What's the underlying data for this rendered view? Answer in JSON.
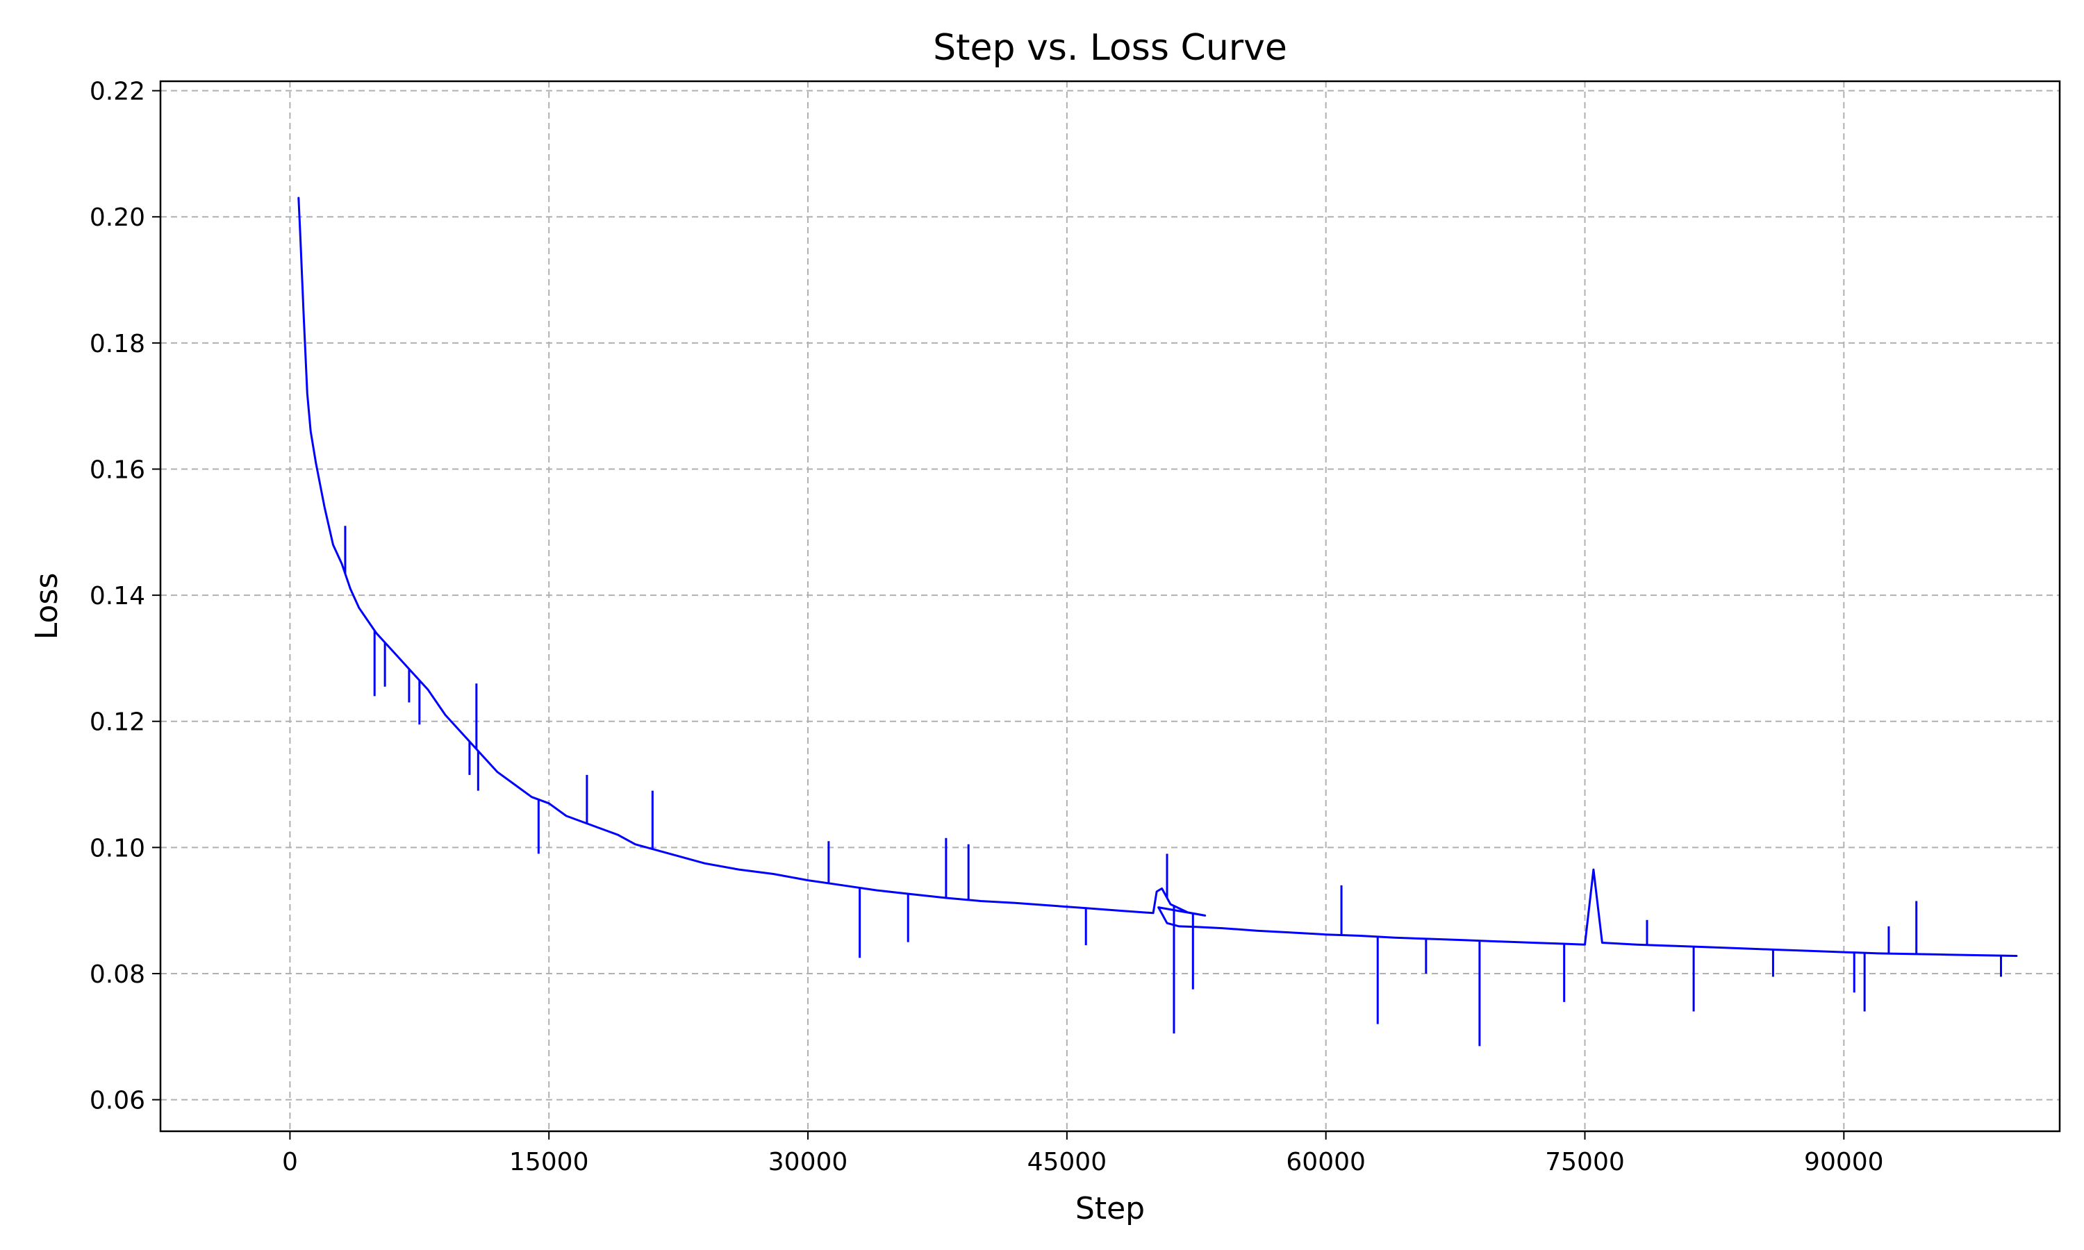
{
  "chart_data": {
    "type": "line",
    "title": "Step vs. Loss Curve",
    "xlabel": "Step",
    "ylabel": "Loss",
    "xlim": [
      -7500,
      102500
    ],
    "ylim": [
      0.055,
      0.2215
    ],
    "xticks": [
      0,
      15000,
      30000,
      45000,
      60000,
      75000,
      90000
    ],
    "xtick_labels": [
      "0",
      "15000",
      "30000",
      "45000",
      "60000",
      "75000",
      "90000"
    ],
    "yticks": [
      0.06,
      0.08,
      0.1,
      0.12,
      0.14,
      0.16,
      0.18,
      0.2,
      0.22
    ],
    "ytick_labels": [
      "0.06",
      "0.08",
      "0.10",
      "0.12",
      "0.14",
      "0.16",
      "0.18",
      "0.20",
      "0.22"
    ],
    "grid": true,
    "series": [
      {
        "color": "#0000ff",
        "x": [
          500,
          600,
          800,
          1000,
          1200,
          1500,
          2000,
          2500,
          3000,
          3500,
          4000,
          5000,
          6000,
          7000,
          8000,
          9000,
          10000,
          11000,
          12000,
          13000,
          14000,
          15000,
          16000,
          17000,
          18000,
          19000,
          20000,
          22000,
          24000,
          26000,
          28000,
          30000,
          32000,
          34000,
          36000,
          38000,
          40000,
          42000,
          44000,
          46000,
          48000,
          50000,
          50200,
          50500,
          51000,
          52000,
          53000,
          50300,
          50500,
          50800,
          51500,
          52500,
          54000,
          56000,
          58000,
          60000,
          62000,
          64000,
          66000,
          68000,
          70000,
          72000,
          74000,
          75000,
          75500,
          76000,
          78000,
          80000,
          82000,
          84000,
          86000,
          88000,
          90000,
          92000,
          94000,
          96000,
          98000,
          100000
        ],
        "y": [
          0.203,
          0.197,
          0.184,
          0.172,
          0.166,
          0.161,
          0.154,
          0.148,
          0.145,
          0.141,
          0.138,
          0.134,
          0.131,
          0.128,
          0.125,
          0.121,
          0.118,
          0.115,
          0.112,
          0.11,
          0.108,
          0.107,
          0.105,
          0.104,
          0.103,
          0.102,
          0.1005,
          0.099,
          0.0975,
          0.0965,
          0.0958,
          0.0948,
          0.094,
          0.0932,
          0.0926,
          0.092,
          0.0915,
          0.0912,
          0.0908,
          0.0904,
          0.09,
          0.0896,
          0.093,
          0.0935,
          0.091,
          0.0897,
          0.0892,
          0.0905,
          0.0895,
          0.088,
          0.0875,
          0.0874,
          0.0872,
          0.0868,
          0.0865,
          0.0862,
          0.086,
          0.0857,
          0.0855,
          0.0853,
          0.0851,
          0.0849,
          0.0847,
          0.0846,
          0.0965,
          0.0849,
          0.0846,
          0.0844,
          0.0842,
          0.084,
          0.0838,
          0.0836,
          0.0834,
          0.0832,
          0.0831,
          0.083,
          0.0829,
          0.0828
        ]
      }
    ],
    "spikes": [
      {
        "x": 3200,
        "y": 0.151
      },
      {
        "x": 4900,
        "y": 0.124
      },
      {
        "x": 5500,
        "y": 0.1255
      },
      {
        "x": 6900,
        "y": 0.123
      },
      {
        "x": 7500,
        "y": 0.1195
      },
      {
        "x": 10400,
        "y": 0.1115
      },
      {
        "x": 10800,
        "y": 0.126
      },
      {
        "x": 10900,
        "y": 0.109
      },
      {
        "x": 14400,
        "y": 0.099
      },
      {
        "x": 17200,
        "y": 0.1115
      },
      {
        "x": 21000,
        "y": 0.109
      },
      {
        "x": 31200,
        "y": 0.101
      },
      {
        "x": 33000,
        "y": 0.0825
      },
      {
        "x": 35800,
        "y": 0.085
      },
      {
        "x": 38000,
        "y": 0.1015
      },
      {
        "x": 39300,
        "y": 0.1005
      },
      {
        "x": 46100,
        "y": 0.0845
      },
      {
        "x": 50800,
        "y": 0.099
      },
      {
        "x": 51200,
        "y": 0.0705
      },
      {
        "x": 52300,
        "y": 0.0775
      },
      {
        "x": 60900,
        "y": 0.094
      },
      {
        "x": 63000,
        "y": 0.072
      },
      {
        "x": 65800,
        "y": 0.08
      },
      {
        "x": 68900,
        "y": 0.0685
      },
      {
        "x": 73800,
        "y": 0.0755
      },
      {
        "x": 78600,
        "y": 0.0885
      },
      {
        "x": 81300,
        "y": 0.074
      },
      {
        "x": 85900,
        "y": 0.0795
      },
      {
        "x": 90600,
        "y": 0.077
      },
      {
        "x": 91200,
        "y": 0.074
      },
      {
        "x": 92600,
        "y": 0.0875
      },
      {
        "x": 94200,
        "y": 0.0915
      },
      {
        "x": 99100,
        "y": 0.0795
      }
    ]
  }
}
